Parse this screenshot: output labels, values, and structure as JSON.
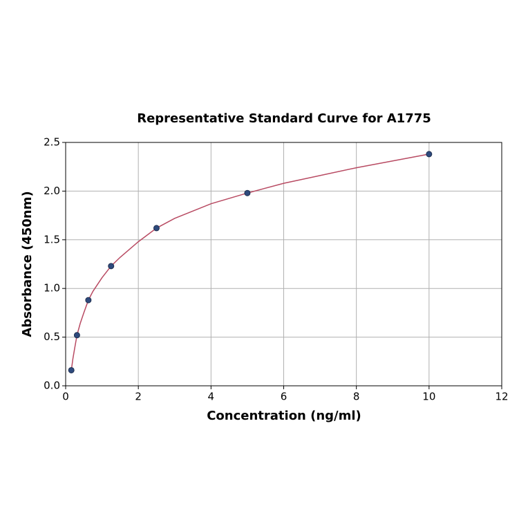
{
  "chart_data": {
    "type": "scatter",
    "title": "Representative Standard Curve for A1775",
    "x_label": "Concentration (ng/ml)",
    "y_label": "Absorbance (450nm)",
    "xlim": [
      0,
      12
    ],
    "xticks": [
      0,
      2,
      4,
      6,
      8,
      10,
      12
    ],
    "ylim": [
      0,
      2.5
    ],
    "yticks": [
      {
        "value": 0,
        "label": "0.0"
      },
      {
        "value": 0.5,
        "label": "0.5"
      },
      {
        "value": 1,
        "label": "1.0"
      },
      {
        "value": 1.5,
        "label": "1.5"
      },
      {
        "value": 2,
        "label": "2.0"
      },
      {
        "value": 2.5,
        "label": "2.5"
      }
    ],
    "grid": true,
    "series": [
      {
        "color": "#2e4a7d",
        "x": [
          0.156,
          0.312,
          0.625,
          1.25,
          2.5,
          5,
          10
        ],
        "values": [
          0.16,
          0.52,
          0.88,
          1.23,
          1.62,
          1.98,
          2.38
        ]
      },
      {
        "color": "#b84a62",
        "line": true,
        "x": [
          0.156,
          0.2,
          0.25,
          0.312,
          0.4,
          0.5,
          0.625,
          0.75,
          1,
          1.25,
          1.5,
          2,
          2.5,
          3,
          4,
          5,
          6,
          7,
          8,
          9,
          10
        ],
        "values": [
          0.16,
          0.28,
          0.39,
          0.52,
          0.64,
          0.75,
          0.88,
          0.97,
          1.11,
          1.23,
          1.32,
          1.48,
          1.62,
          1.72,
          1.87,
          1.98,
          2.08,
          2.16,
          2.24,
          2.31,
          2.38
        ]
      }
    ]
  }
}
